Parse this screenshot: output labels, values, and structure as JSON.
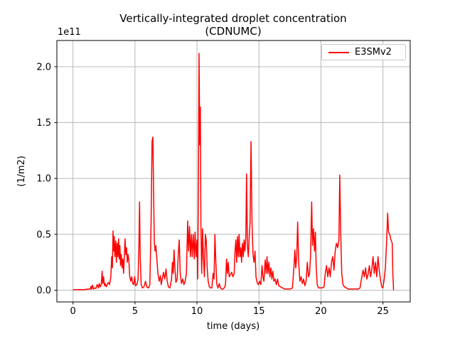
{
  "chart_data": {
    "type": "line",
    "title": "Vertically-integrated droplet concentration (CDNUMC)",
    "title_line1": "Vertically-integrated droplet concentration",
    "title_line2": "(CDNUMC)",
    "xlabel": "time (days)",
    "ylabel": "(1/m2)",
    "y_offset_text": "1e11",
    "y_units_note": "y values are in units of 1e11 (1/m2)",
    "x_ticks": [
      0,
      5,
      10,
      15,
      20,
      25
    ],
    "y_ticks": [
      0.0,
      0.5,
      1.0,
      1.5,
      2.0
    ],
    "y_tick_labels": [
      "0.0",
      "0.5",
      "1.0",
      "1.5",
      "2.0"
    ],
    "xlim": [
      -1.3,
      27.2
    ],
    "ylim": [
      -0.105,
      2.235
    ],
    "grid": true,
    "grid_color": "#b0b0b0",
    "background_color": "#ffffff",
    "legend": {
      "position": "upper right",
      "entries": [
        {
          "label": "E3SMv2",
          "color": "#ff0000"
        }
      ]
    },
    "series": [
      {
        "name": "E3SMv2",
        "color": "#ff0000",
        "linewidth": 1.5,
        "x": [
          0,
          0.3,
          0.6,
          0.9,
          1.2,
          1.4,
          1.45,
          1.5,
          1.58,
          1.65,
          1.75,
          1.85,
          1.95,
          2.05,
          2.12,
          2.2,
          2.28,
          2.35,
          2.4,
          2.47,
          2.53,
          2.6,
          2.68,
          2.75,
          2.85,
          2.95,
          3.05,
          3.12,
          3.18,
          3.23,
          3.28,
          3.33,
          3.38,
          3.45,
          3.5,
          3.56,
          3.62,
          3.68,
          3.73,
          3.78,
          3.84,
          3.9,
          3.96,
          4.02,
          4.08,
          4.14,
          4.2,
          4.26,
          4.32,
          4.38,
          4.44,
          4.5,
          4.58,
          4.66,
          4.74,
          4.82,
          4.9,
          4.98,
          5.05,
          5.15,
          5.25,
          5.32,
          5.37,
          5.42,
          5.5,
          5.6,
          5.72,
          5.85,
          5.95,
          6.1,
          6.2,
          6.3,
          6.38,
          6.44,
          6.5,
          6.56,
          6.62,
          6.68,
          6.75,
          6.85,
          6.95,
          7.05,
          7.12,
          7.2,
          7.3,
          7.4,
          7.5,
          7.6,
          7.7,
          7.82,
          7.95,
          8.02,
          8.08,
          8.15,
          8.22,
          8.3,
          8.4,
          8.5,
          8.57,
          8.65,
          8.75,
          8.85,
          8.95,
          9.05,
          9.15,
          9.25,
          9.32,
          9.4,
          9.47,
          9.55,
          9.62,
          9.7,
          9.78,
          9.85,
          9.92,
          10.0,
          10.06,
          10.12,
          10.17,
          10.22,
          10.27,
          10.32,
          10.38,
          10.45,
          10.52,
          10.6,
          10.68,
          10.75,
          10.82,
          10.9,
          11.0,
          11.1,
          11.2,
          11.3,
          11.38,
          11.45,
          11.52,
          11.6,
          11.7,
          11.8,
          11.9,
          12.0,
          12.1,
          12.2,
          12.3,
          12.38,
          12.45,
          12.52,
          12.6,
          12.7,
          12.8,
          12.9,
          13.0,
          13.07,
          13.14,
          13.2,
          13.27,
          13.34,
          13.4,
          13.47,
          13.54,
          13.6,
          13.67,
          13.74,
          13.8,
          13.87,
          13.94,
          14.0,
          14.07,
          14.14,
          14.2,
          14.28,
          14.36,
          14.44,
          14.52,
          14.6,
          14.68,
          14.76,
          14.85,
          14.95,
          15.05,
          15.15,
          15.25,
          15.32,
          15.4,
          15.5,
          15.58,
          15.65,
          15.72,
          15.8,
          15.88,
          15.96,
          16.04,
          16.12,
          16.2,
          16.3,
          16.4,
          16.5,
          16.6,
          16.75,
          16.9,
          17.1,
          17.3,
          17.5,
          17.7,
          17.82,
          17.9,
          17.97,
          18.05,
          18.12,
          18.2,
          18.3,
          18.4,
          18.5,
          18.6,
          18.7,
          18.8,
          18.9,
          19.0,
          19.08,
          19.16,
          19.25,
          19.32,
          19.4,
          19.48,
          19.55,
          19.62,
          19.7,
          19.8,
          19.95,
          20.1,
          20.25,
          20.35,
          20.45,
          20.55,
          20.65,
          20.75,
          20.85,
          20.95,
          21.05,
          21.15,
          21.25,
          21.35,
          21.45,
          21.52,
          21.6,
          21.68,
          21.78,
          21.9,
          22.05,
          22.2,
          22.4,
          22.6,
          22.8,
          23.0,
          23.15,
          23.3,
          23.4,
          23.5,
          23.6,
          23.7,
          23.8,
          23.9,
          24.0,
          24.1,
          24.2,
          24.3,
          24.4,
          24.5,
          24.6,
          24.7,
          24.8,
          24.9,
          25.0,
          25.1,
          25.2,
          25.3,
          25.38,
          25.45,
          25.55,
          25.65,
          25.75,
          25.8,
          25.86
        ],
        "y": [
          0.005,
          0.005,
          0.005,
          0.005,
          0.01,
          0.01,
          0.035,
          0.01,
          0.045,
          0.01,
          0.02,
          0.015,
          0.05,
          0.02,
          0.06,
          0.03,
          0.05,
          0.17,
          0.06,
          0.12,
          0.04,
          0.06,
          0.03,
          0.05,
          0.07,
          0.05,
          0.12,
          0.3,
          0.2,
          0.53,
          0.35,
          0.48,
          0.3,
          0.44,
          0.25,
          0.42,
          0.3,
          0.46,
          0.28,
          0.4,
          0.22,
          0.32,
          0.2,
          0.28,
          0.15,
          0.3,
          0.46,
          0.32,
          0.38,
          0.25,
          0.32,
          0.28,
          0.12,
          0.08,
          0.12,
          0.06,
          0.05,
          0.12,
          0.04,
          0.05,
          0.1,
          0.4,
          0.79,
          0.3,
          0.05,
          0.02,
          0.03,
          0.08,
          0.03,
          0.02,
          0.05,
          0.6,
          1.33,
          1.37,
          0.9,
          0.42,
          0.35,
          0.4,
          0.3,
          0.15,
          0.08,
          0.13,
          0.05,
          0.1,
          0.16,
          0.1,
          0.19,
          0.08,
          0.03,
          0.02,
          0.1,
          0.25,
          0.15,
          0.36,
          0.2,
          0.07,
          0.1,
          0.34,
          0.45,
          0.15,
          0.06,
          0.1,
          0.05,
          0.08,
          0.15,
          0.62,
          0.35,
          0.57,
          0.3,
          0.5,
          0.3,
          0.5,
          0.28,
          0.52,
          0.3,
          0.45,
          0.1,
          1.0,
          2.12,
          1.3,
          1.64,
          0.6,
          0.15,
          0.55,
          0.3,
          0.12,
          0.5,
          0.45,
          0.2,
          0.08,
          0.03,
          0.02,
          0.02,
          0.15,
          0.1,
          0.5,
          0.25,
          0.05,
          0.02,
          0.06,
          0.02,
          0.01,
          0.01,
          0.02,
          0.05,
          0.28,
          0.15,
          0.25,
          0.12,
          0.14,
          0.16,
          0.12,
          0.15,
          0.35,
          0.45,
          0.25,
          0.48,
          0.3,
          0.5,
          0.3,
          0.38,
          0.25,
          0.42,
          0.3,
          0.45,
          0.35,
          0.48,
          1.04,
          0.4,
          0.3,
          0.45,
          0.6,
          1.33,
          0.6,
          0.32,
          0.25,
          0.35,
          0.12,
          0.07,
          0.05,
          0.08,
          0.05,
          0.22,
          0.12,
          0.08,
          0.27,
          0.15,
          0.3,
          0.15,
          0.25,
          0.12,
          0.2,
          0.1,
          0.17,
          0.08,
          0.1,
          0.05,
          0.1,
          0.04,
          0.03,
          0.02,
          0.01,
          0.01,
          0.01,
          0.02,
          0.2,
          0.36,
          0.2,
          0.3,
          0.61,
          0.25,
          0.08,
          0.12,
          0.06,
          0.1,
          0.04,
          0.08,
          0.25,
          0.12,
          0.15,
          0.3,
          0.79,
          0.4,
          0.55,
          0.35,
          0.52,
          0.2,
          0.05,
          0.02,
          0.02,
          0.02,
          0.03,
          0.15,
          0.22,
          0.12,
          0.2,
          0.12,
          0.25,
          0.3,
          0.18,
          0.35,
          0.42,
          0.38,
          0.45,
          1.03,
          0.5,
          0.15,
          0.05,
          0.03,
          0.02,
          0.01,
          0.01,
          0.01,
          0.01,
          0.01,
          0.02,
          0.12,
          0.18,
          0.12,
          0.2,
          0.1,
          0.14,
          0.22,
          0.12,
          0.18,
          0.3,
          0.15,
          0.25,
          0.12,
          0.3,
          0.18,
          0.1,
          0.03,
          0.02,
          0.1,
          0.2,
          0.45,
          0.69,
          0.52,
          0.5,
          0.45,
          0.42,
          0.15,
          0.0
        ]
      }
    ]
  }
}
